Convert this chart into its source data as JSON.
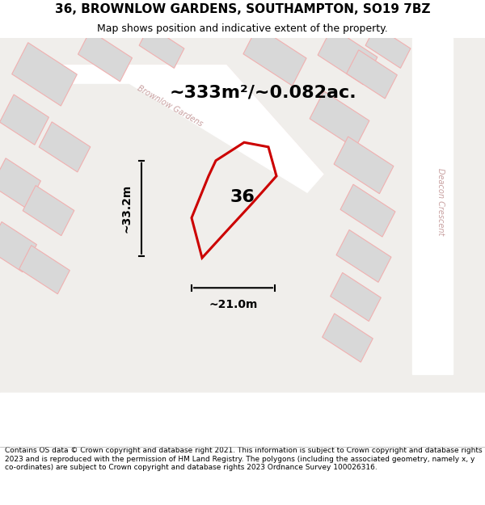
{
  "title": "36, BROWNLOW GARDENS, SOUTHAMPTON, SO19 7BZ",
  "subtitle": "Map shows position and indicative extent of the property.",
  "area_text": "~333m²/~0.082ac.",
  "width_text": "~21.0m",
  "height_text": "~33.2m",
  "plot_number": "36",
  "footer": "Contains OS data © Crown copyright and database right 2021. This information is subject to Crown copyright and database rights 2023 and is reproduced with the permission of HM Land Registry. The polygons (including the associated geometry, namely x, y co-ordinates) are subject to Crown copyright and database rights 2023 Ordnance Survey 100026316.",
  "bg_color": "#f0eeeb",
  "map_bg": "#f0eeeb",
  "road_color": "#ffffff",
  "building_color": "#d8d8d8",
  "property_outline_color": "#cc0000",
  "street_label_color": "#c8a0a0",
  "title_color": "#000000",
  "footer_color": "#000000"
}
